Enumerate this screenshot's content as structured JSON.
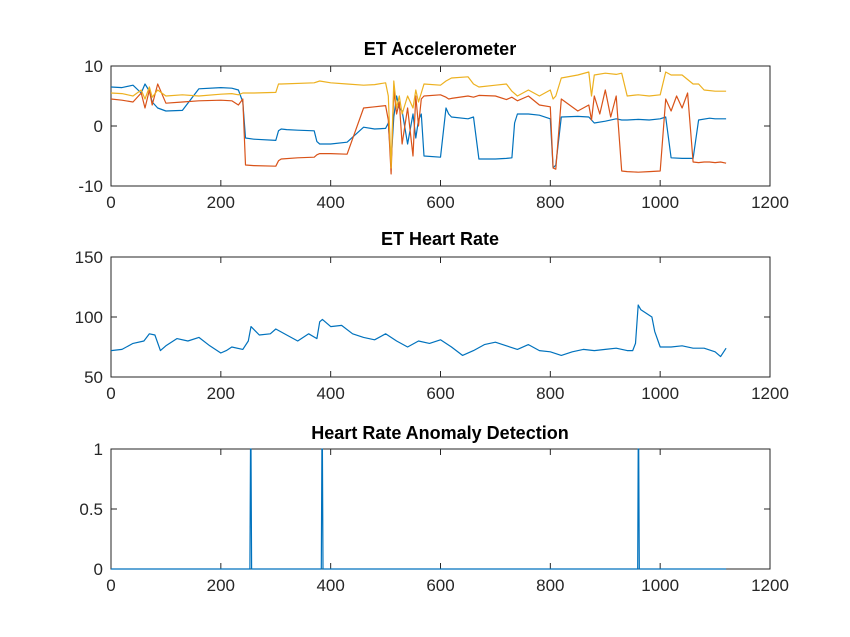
{
  "chart_data": [
    {
      "type": "line",
      "title": "ET Accelerometer",
      "xlabel": "",
      "ylabel": "",
      "xlim": [
        0,
        1200
      ],
      "ylim": [
        -10,
        10
      ],
      "xticks": [
        0,
        200,
        400,
        600,
        800,
        1000,
        1200
      ],
      "yticks": [
        -10,
        0,
        10
      ],
      "grid": false,
      "series": [
        {
          "color": "#0072bd",
          "x": [
            0,
            20,
            40,
            55,
            62,
            70,
            75,
            85,
            100,
            130,
            160,
            200,
            220,
            232,
            240,
            245,
            260,
            300,
            305,
            310,
            320,
            340,
            370,
            375,
            380,
            400,
            430,
            460,
            480,
            500,
            505,
            510,
            515,
            520,
            525,
            530,
            540,
            550,
            555,
            560,
            565,
            570,
            600,
            610,
            615,
            620,
            650,
            660,
            670,
            700,
            720,
            730,
            735,
            740,
            760,
            780,
            800,
            805,
            810,
            820,
            850,
            870,
            875,
            880,
            900,
            920,
            930,
            940,
            960,
            980,
            1000,
            1010,
            1020,
            1040,
            1060,
            1070,
            1090,
            1100,
            1120
          ],
          "y": [
            6.5,
            6.4,
            6.8,
            5.5,
            7.0,
            5.8,
            4.0,
            3.0,
            2.5,
            2.6,
            6.2,
            6.4,
            6.3,
            6.0,
            4.0,
            -2.0,
            -2.2,
            -2.4,
            -0.8,
            -0.5,
            -0.6,
            -0.7,
            -0.8,
            -2.6,
            -3.0,
            -3.0,
            -2.7,
            -0.2,
            -0.5,
            -0.4,
            0.5,
            -6.0,
            1.5,
            5.0,
            3.0,
            2.5,
            -3.0,
            2.0,
            -2.0,
            1.0,
            2.0,
            -5.0,
            -5.2,
            3.0,
            2.0,
            1.5,
            1.2,
            1.5,
            -5.5,
            -5.5,
            -5.4,
            -5.3,
            0.5,
            2.0,
            2.0,
            1.8,
            1.2,
            -7.0,
            -6.5,
            1.5,
            1.6,
            1.5,
            1.0,
            0.5,
            0.8,
            1.2,
            1.0,
            1.0,
            1.1,
            1.0,
            1.2,
            1.5,
            -5.3,
            -5.4,
            -5.4,
            1.0,
            1.3,
            1.2,
            1.2
          ]
        },
        {
          "color": "#d95319",
          "x": [
            0,
            20,
            40,
            55,
            62,
            70,
            75,
            85,
            100,
            130,
            160,
            200,
            220,
            232,
            240,
            245,
            260,
            300,
            305,
            310,
            340,
            370,
            375,
            380,
            400,
            430,
            460,
            480,
            500,
            505,
            510,
            515,
            520,
            525,
            530,
            540,
            550,
            555,
            560,
            565,
            570,
            600,
            610,
            615,
            620,
            650,
            660,
            670,
            700,
            720,
            730,
            740,
            760,
            780,
            800,
            805,
            810,
            820,
            850,
            870,
            875,
            880,
            890,
            900,
            910,
            920,
            930,
            940,
            960,
            980,
            1000,
            1010,
            1020,
            1030,
            1040,
            1050,
            1060,
            1070,
            1080,
            1090,
            1100,
            1110,
            1120
          ],
          "y": [
            4.5,
            4.3,
            4.0,
            5.5,
            3.0,
            6.0,
            3.5,
            7.0,
            3.8,
            4.0,
            4.2,
            4.3,
            4.2,
            3.5,
            4.5,
            -6.5,
            -6.6,
            -6.7,
            -5.8,
            -5.5,
            -5.3,
            -5.2,
            -4.8,
            -4.6,
            -4.6,
            -4.7,
            3.0,
            3.2,
            3.4,
            1.0,
            -8.0,
            6.0,
            2.0,
            4.0,
            -3.0,
            3.0,
            -5.0,
            5.0,
            0.0,
            4.5,
            5.0,
            5.2,
            4.8,
            4.5,
            4.6,
            5.0,
            4.8,
            5.1,
            5.0,
            4.4,
            4.8,
            4.2,
            5.0,
            3.5,
            3.2,
            -7.0,
            -7.2,
            4.5,
            2.5,
            3.5,
            1.0,
            5.0,
            2.0,
            6.0,
            1.5,
            5.0,
            -7.5,
            -7.6,
            -7.7,
            -7.6,
            -7.5,
            4.5,
            2.5,
            5.0,
            3.0,
            5.5,
            -6.0,
            -6.1,
            -6.0,
            -6.0,
            -6.1,
            -6.0,
            -6.2
          ]
        },
        {
          "color": "#edb120",
          "x": [
            0,
            20,
            40,
            55,
            62,
            70,
            75,
            85,
            100,
            130,
            160,
            200,
            220,
            232,
            240,
            245,
            260,
            300,
            305,
            310,
            370,
            380,
            400,
            430,
            460,
            480,
            500,
            505,
            510,
            515,
            520,
            525,
            530,
            540,
            550,
            555,
            560,
            565,
            570,
            600,
            610,
            620,
            650,
            660,
            670,
            700,
            720,
            730,
            740,
            760,
            780,
            800,
            805,
            810,
            820,
            850,
            870,
            875,
            880,
            900,
            920,
            930,
            940,
            960,
            980,
            1000,
            1010,
            1020,
            1040,
            1060,
            1070,
            1080,
            1100,
            1120
          ],
          "y": [
            5.5,
            5.4,
            5.0,
            6.0,
            4.5,
            6.5,
            4.8,
            6.0,
            5.0,
            5.2,
            5.0,
            5.3,
            5.4,
            5.2,
            5.5,
            5.5,
            5.5,
            5.6,
            7.0,
            7.0,
            7.2,
            7.5,
            7.2,
            7.0,
            6.8,
            6.9,
            7.2,
            5.0,
            -7.0,
            7.5,
            3.0,
            5.0,
            2.0,
            5.0,
            3.0,
            6.0,
            4.0,
            5.5,
            7.0,
            6.8,
            7.5,
            8.0,
            8.2,
            7.0,
            6.5,
            6.8,
            7.0,
            5.8,
            5.0,
            6.0,
            5.0,
            6.0,
            4.5,
            5.0,
            8.0,
            8.5,
            9.0,
            5.0,
            8.5,
            8.8,
            8.6,
            8.8,
            5.0,
            5.2,
            5.0,
            5.2,
            9.0,
            8.5,
            8.5,
            7.0,
            7.0,
            6.0,
            5.8,
            5.8
          ]
        }
      ]
    },
    {
      "type": "line",
      "title": "ET Heart Rate",
      "xlabel": "",
      "ylabel": "",
      "xlim": [
        0,
        1200
      ],
      "ylim": [
        50,
        150
      ],
      "xticks": [
        0,
        200,
        400,
        600,
        800,
        1000,
        1200
      ],
      "yticks": [
        50,
        100,
        150
      ],
      "grid": false,
      "series": [
        {
          "color": "#0072bd",
          "x": [
            0,
            20,
            40,
            60,
            70,
            80,
            90,
            100,
            120,
            140,
            160,
            180,
            200,
            210,
            220,
            240,
            250,
            255,
            270,
            290,
            300,
            320,
            340,
            360,
            375,
            380,
            385,
            400,
            420,
            440,
            460,
            480,
            500,
            520,
            540,
            560,
            580,
            600,
            620,
            640,
            660,
            680,
            700,
            720,
            740,
            760,
            780,
            800,
            820,
            840,
            860,
            880,
            900,
            920,
            940,
            950,
            955,
            960,
            965,
            975,
            985,
            990,
            1000,
            1020,
            1040,
            1060,
            1080,
            1100,
            1110,
            1120
          ],
          "y": [
            72,
            73,
            78,
            80,
            86,
            85,
            72,
            76,
            82,
            80,
            83,
            76,
            70,
            72,
            75,
            73,
            80,
            92,
            85,
            86,
            90,
            85,
            80,
            86,
            82,
            96,
            98,
            92,
            93,
            86,
            83,
            81,
            86,
            80,
            75,
            80,
            78,
            81,
            75,
            68,
            72,
            77,
            79,
            76,
            73,
            77,
            72,
            71,
            68,
            71,
            73,
            72,
            73,
            74,
            72,
            72,
            78,
            110,
            106,
            103,
            100,
            88,
            75,
            75,
            76,
            74,
            74,
            71,
            67,
            74
          ]
        }
      ]
    },
    {
      "type": "line",
      "title": "Heart Rate Anomaly Detection",
      "xlabel": "",
      "ylabel": "",
      "xlim": [
        0,
        1200
      ],
      "ylim": [
        0,
        1
      ],
      "xticks": [
        0,
        200,
        400,
        600,
        800,
        1000,
        1200
      ],
      "yticks": [
        0,
        0.5,
        1
      ],
      "grid": false,
      "series": [
        {
          "color": "#0072bd",
          "x": [
            0,
            253,
            254,
            255,
            256,
            383,
            384,
            385,
            386,
            959,
            960,
            961,
            962,
            1120
          ],
          "y": [
            0,
            0,
            1,
            1,
            0,
            0,
            1,
            1,
            0,
            0,
            1,
            1,
            0,
            0
          ]
        }
      ]
    }
  ]
}
